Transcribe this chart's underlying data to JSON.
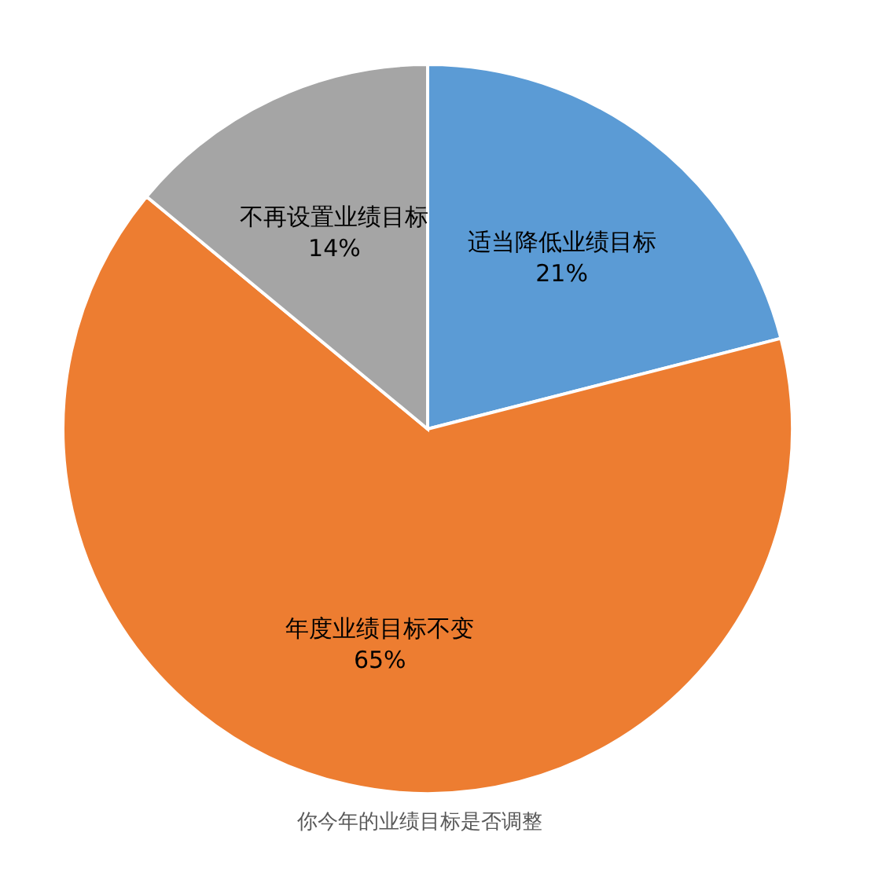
{
  "chart_data": {
    "type": "pie",
    "title": "你今年的业绩目标是否调整",
    "categories": [
      "适当降低业绩目标",
      "年度业绩目标不变",
      "不再设置业绩目标"
    ],
    "values": [
      21,
      65,
      14
    ],
    "value_labels": [
      "21%",
      "65%",
      "14%"
    ],
    "colors": [
      "#5b9bd5",
      "#ed7d31",
      "#a5a5a5"
    ],
    "legend": false
  }
}
